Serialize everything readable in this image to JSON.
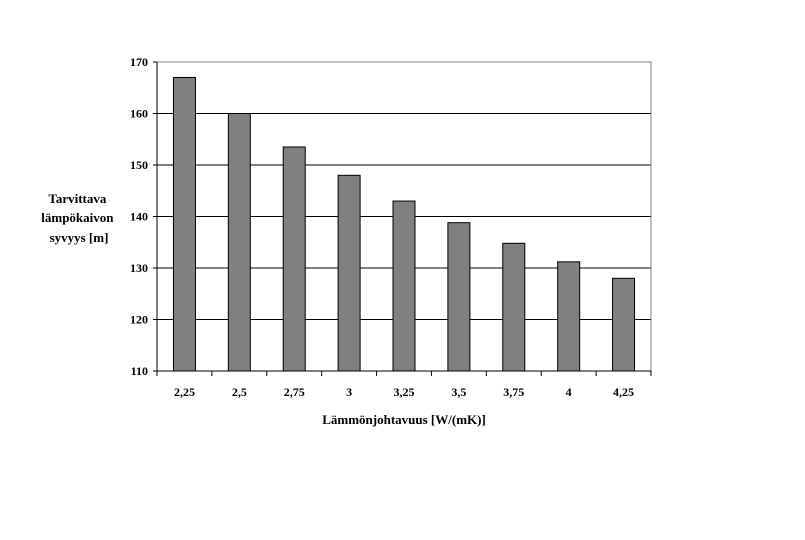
{
  "chart_data": {
    "type": "bar",
    "categories": [
      "2,25",
      "2,5",
      "2,75",
      "3",
      "3,25",
      "3,5",
      "3,75",
      "4",
      "4,25"
    ],
    "values": [
      167,
      160,
      153.5,
      148,
      143,
      138.8,
      134.8,
      131.2,
      128
    ],
    "xlabel": "Lämmönjohtavuus [W/(mK)]",
    "ylabel": [
      "Tarvittava",
      "lämpökaivon",
      "syvyys [m]"
    ],
    "ylim": [
      110,
      170
    ],
    "yticks": [
      110,
      120,
      130,
      140,
      150,
      160,
      170
    ],
    "grid": "horizontal",
    "bar_color": "#808080",
    "gridline_color": "#000000"
  }
}
